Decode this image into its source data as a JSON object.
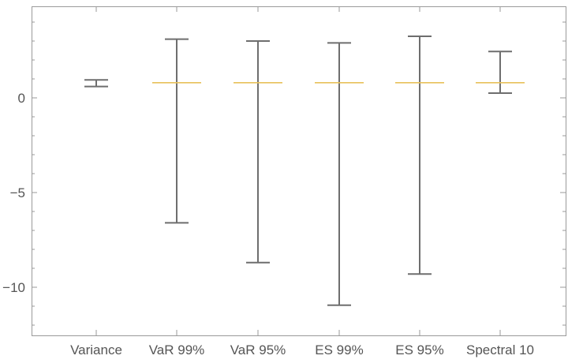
{
  "chart_data": {
    "type": "box",
    "title": "",
    "xlabel": "",
    "ylabel": "",
    "ylim": [
      -12.5,
      5
    ],
    "yticks": [
      0,
      -5,
      -10
    ],
    "ytick_labels": [
      "0",
      "−5",
      "−10"
    ],
    "grid": false,
    "legend": "none",
    "categories": [
      "Variance",
      "VaR 99%",
      "VaR 95%",
      "ES 99%",
      "ES 95%",
      "Spectral 10"
    ],
    "intervals": [
      {
        "category": "Variance",
        "low": 0.6,
        "high": 0.95,
        "mark": null
      },
      {
        "category": "VaR 99%",
        "low": -6.6,
        "high": 3.1,
        "mark": 0.8
      },
      {
        "category": "VaR 95%",
        "low": -8.7,
        "high": 3.0,
        "mark": 0.8
      },
      {
        "category": "ES 99%",
        "low": -10.95,
        "high": 2.9,
        "mark": 0.8
      },
      {
        "category": "ES 95%",
        "low": -9.3,
        "high": 3.25,
        "mark": 0.8
      },
      {
        "category": "Spectral 10",
        "low": 0.25,
        "high": 2.45,
        "mark": 0.8
      }
    ],
    "colors": {
      "whisker": "#6e6e6e",
      "mark": "#e8c15a",
      "frame": "#9a9a9a",
      "text": "#555555"
    }
  }
}
